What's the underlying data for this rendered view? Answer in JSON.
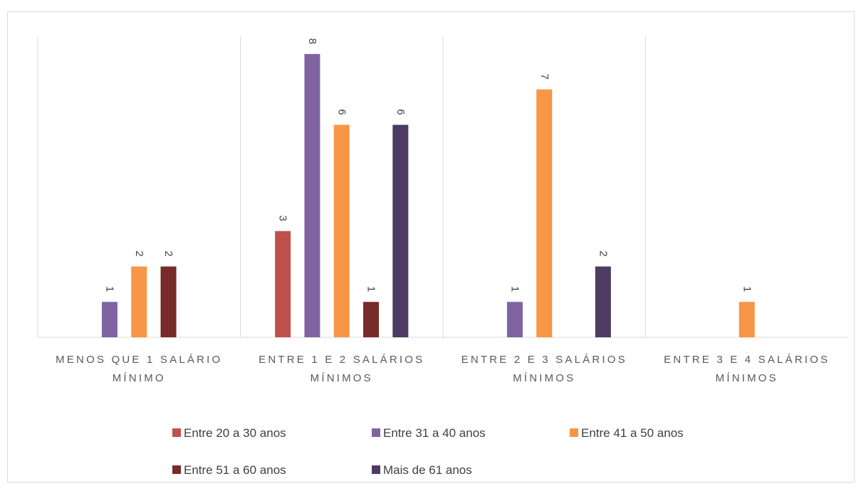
{
  "chart_data": {
    "type": "bar",
    "title": "",
    "xlabel": "",
    "ylabel": "",
    "ylim": [
      0,
      8.5
    ],
    "grid": "vertical-separators",
    "legend_position": "bottom",
    "categories": [
      [
        "MENOS QUE 1 SALÁRIO",
        "MÍNIMO"
      ],
      [
        "ENTRE 1 E 2 SALÁRIOS",
        "MÍNIMOS"
      ],
      [
        "ENTRE 2 E 3 SALÁRIOS",
        "MÍNIMOS"
      ],
      [
        "ENTRE 3 E 4 SALÁRIOS",
        "MÍNIMOS"
      ]
    ],
    "series": [
      {
        "name": "Entre 20 a 30 anos",
        "color": "#c0504d",
        "values": [
          0,
          3,
          0,
          0
        ]
      },
      {
        "name": "Entre 31 a 40 anos",
        "color": "#8064a2",
        "values": [
          1,
          8,
          1,
          0
        ]
      },
      {
        "name": "Entre 41 a 50 anos",
        "color": "#f79646",
        "values": [
          2,
          6,
          7,
          1
        ]
      },
      {
        "name": "Entre 51 a 60 anos",
        "color": "#772c2a",
        "values": [
          2,
          1,
          0,
          0
        ]
      },
      {
        "name": "Mais de 61 anos",
        "color": "#4d3b62",
        "values": [
          0,
          6,
          2,
          0
        ]
      }
    ]
  }
}
